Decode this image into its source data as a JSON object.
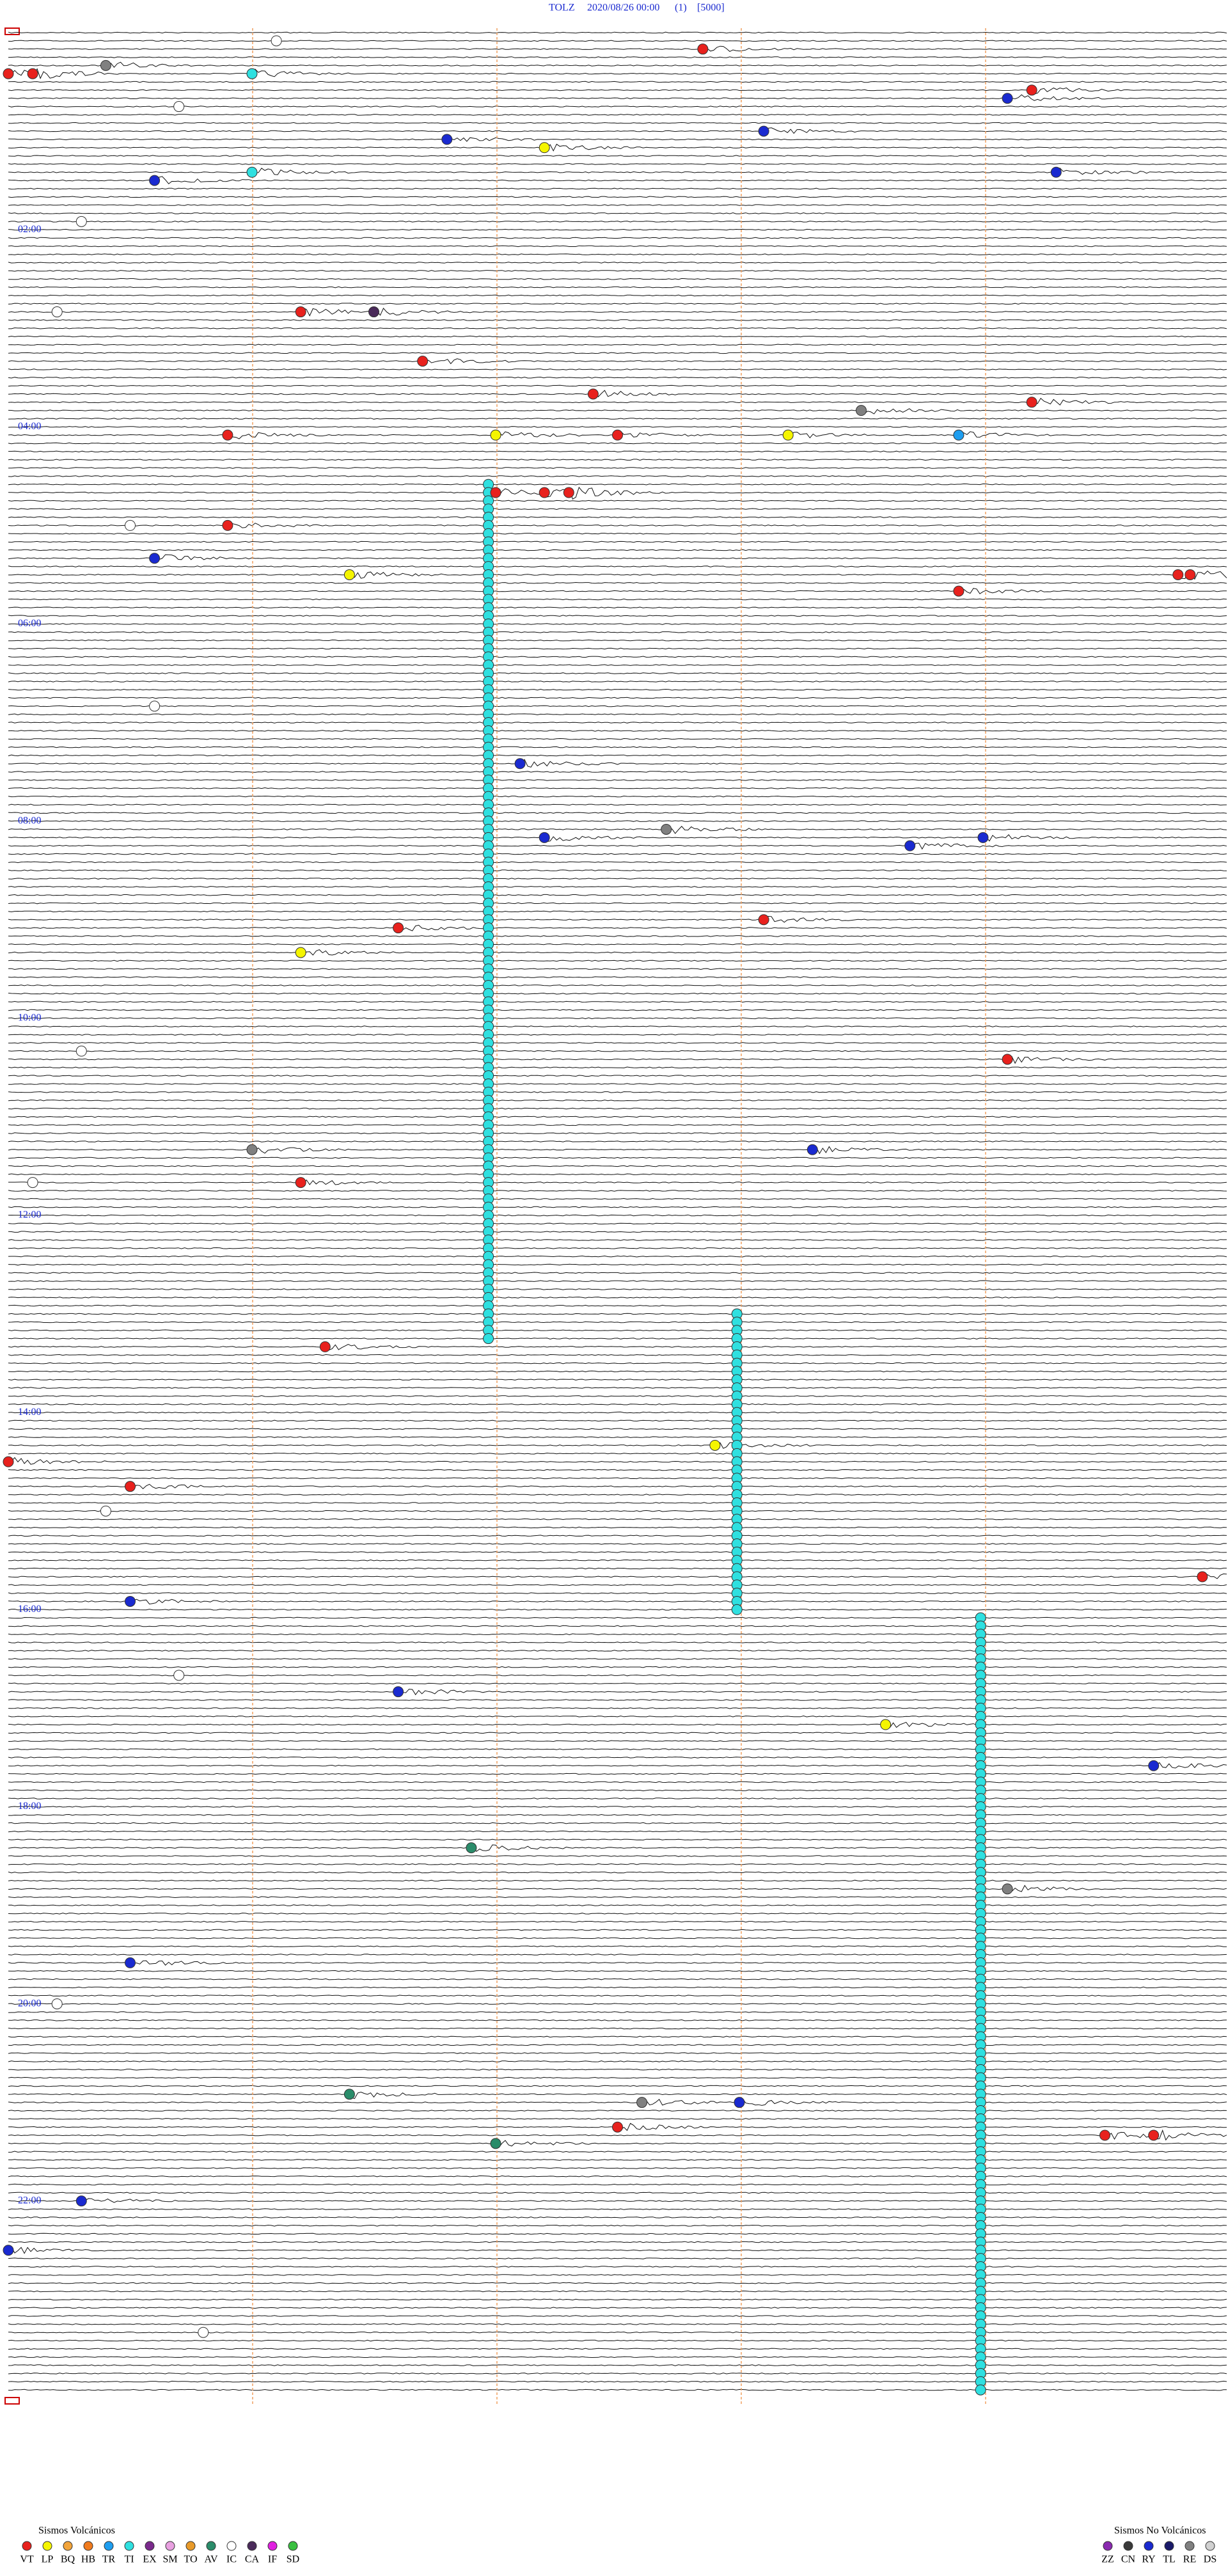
{
  "header": {
    "station": "TOLZ",
    "datetime": "2020/08/26 00:00",
    "channel": "(1)",
    "scale": "[5000]"
  },
  "hour_labels": [
    "02:00",
    "04:00",
    "06:00",
    "08:00",
    "10:00",
    "12:00",
    "14:00",
    "16:00",
    "18:00",
    "20:00",
    "22:00"
  ],
  "legend_volcanic": {
    "title": "Sismos Volcánicos",
    "items": [
      {
        "code": "VT",
        "color": "#e8211d"
      },
      {
        "code": "LP",
        "color": "#f5f500"
      },
      {
        "code": "BQ",
        "color": "#f2a43a"
      },
      {
        "code": "HB",
        "color": "#f07b1e"
      },
      {
        "code": "TR",
        "color": "#1e9ef0"
      },
      {
        "code": "TI",
        "color": "#2fe0e0"
      },
      {
        "code": "EX",
        "color": "#7a2a8c"
      },
      {
        "code": "SM",
        "color": "#e8a0e0"
      },
      {
        "code": "TO",
        "color": "#e89a2a"
      },
      {
        "code": "AV",
        "color": "#2a8c6a"
      },
      {
        "code": "IC",
        "color": "#ffffff"
      },
      {
        "code": "CA",
        "color": "#4a2a5a"
      },
      {
        "code": "IF",
        "color": "#e020e0"
      },
      {
        "code": "SD",
        "color": "#3ac040"
      }
    ]
  },
  "legend_nonvolcanic": {
    "title": "Sismos No Volcánicos",
    "items": [
      {
        "code": "ZZ",
        "color": "#8a2ab0"
      },
      {
        "code": "CN",
        "color": "#3a3a3a"
      },
      {
        "code": "RY",
        "color": "#1a2ad0"
      },
      {
        "code": "TL",
        "color": "#1a1a6a"
      },
      {
        "code": "RE",
        "color": "#808080"
      },
      {
        "code": "DS",
        "color": "#d0d0d0"
      }
    ]
  },
  "events": [
    {
      "type": "VT",
      "minute": 12.85
    },
    {
      "type": "VT",
      "minute": 25.0
    },
    {
      "type": "VT",
      "minute": 25.1
    },
    {
      "type": "TI",
      "minute": 26.0
    },
    {
      "type": "VT",
      "minute": 39.2
    },
    {
      "type": "RY",
      "minute": 44.1
    },
    {
      "type": "RY",
      "minute": 63.1
    },
    {
      "type": "RY",
      "minute": 66.8
    },
    {
      "type": "LP",
      "minute": 72.2
    },
    {
      "type": "RY",
      "minute": 90.6
    },
    {
      "type": "RY",
      "minute": 89.3
    },
    {
      "type": "TI",
      "minute": 86.0
    },
    {
      "type": "VT",
      "minute": 171.2
    },
    {
      "type": "CA",
      "minute": 171.5
    },
    {
      "type": "VT",
      "minute": 201.7
    },
    {
      "type": "VT",
      "minute": 222.4
    },
    {
      "type": "VT",
      "minute": 229.2
    },
    {
      "type": "VT",
      "minute": 245.9
    },
    {
      "type": "LP",
      "minute": 247.0
    },
    {
      "type": "VT",
      "minute": 247.5
    },
    {
      "type": "LP",
      "minute": 248.2
    },
    {
      "type": "TR",
      "minute": 248.9
    },
    {
      "type": "VT",
      "minute": 282.2
    },
    {
      "type": "VT",
      "minute": 282.3
    },
    {
      "type": "VT",
      "minute": 282.0
    },
    {
      "type": "VT",
      "minute": 300.9
    },
    {
      "type": "RY",
      "minute": 320.6
    },
    {
      "type": "LP",
      "minute": 331.4
    },
    {
      "type": "VT",
      "minute": 334.8
    },
    {
      "type": "VT",
      "minute": 334.85
    },
    {
      "type": "VT",
      "minute": 343.9
    },
    {
      "type": "RY",
      "minute": 447.1
    },
    {
      "type": "RY",
      "minute": 492.2
    },
    {
      "type": "RY",
      "minute": 498.7
    },
    {
      "type": "RY",
      "minute": 494.0
    },
    {
      "type": "VT",
      "minute": 546.6
    },
    {
      "type": "VT",
      "minute": 543.1
    },
    {
      "type": "LP",
      "minute": 561.2
    },
    {
      "type": "VT",
      "minute": 629.1
    },
    {
      "type": "RY",
      "minute": 683.3
    },
    {
      "type": "VT",
      "minute": 701.2
    },
    {
      "type": "VT",
      "minute": 801.3
    },
    {
      "type": "LP",
      "minute": 862.9
    },
    {
      "type": "VT",
      "minute": 870.0
    },
    {
      "type": "VT",
      "minute": 885.5
    },
    {
      "type": "VT",
      "minute": 944.9
    },
    {
      "type": "RY",
      "minute": 955.5
    },
    {
      "type": "RY",
      "minute": 1011.6
    },
    {
      "type": "LP",
      "minute": 1033.6
    },
    {
      "type": "RY",
      "minute": 1059.7
    },
    {
      "type": "AV",
      "minute": 1106.9
    },
    {
      "type": "RY",
      "minute": 1175.5
    },
    {
      "type": "AV",
      "minute": 1256.4
    },
    {
      "type": "RY",
      "minute": 1263.0
    },
    {
      "type": "VT",
      "minute": 1277.5
    },
    {
      "type": "AV",
      "minute": 1287.0
    },
    {
      "type": "VT",
      "minute": 1284.5
    },
    {
      "type": "VT",
      "minute": 1284.7
    },
    {
      "type": "RY",
      "minute": 1320.3
    },
    {
      "type": "RY",
      "minute": 1350.0
    },
    {
      "type": "IC",
      "minute": 6.1
    },
    {
      "type": "IC",
      "minute": 45.7
    },
    {
      "type": "IC",
      "minute": 115.3
    },
    {
      "type": "IC",
      "minute": 170.2
    },
    {
      "type": "IC",
      "minute": 300.5
    },
    {
      "type": "IC",
      "minute": 410.6
    },
    {
      "type": "IC",
      "minute": 620.3
    },
    {
      "type": "IC",
      "minute": 700.1
    },
    {
      "type": "IC",
      "minute": 900.4
    },
    {
      "type": "IC",
      "minute": 1000.7
    },
    {
      "type": "IC",
      "minute": 1200.2
    },
    {
      "type": "IC",
      "minute": 1400.8
    },
    {
      "type": "RE",
      "minute": 20.4
    },
    {
      "type": "RE",
      "minute": 233.5
    },
    {
      "type": "RE",
      "minute": 487.7
    },
    {
      "type": "RE",
      "minute": 681.0
    },
    {
      "type": "RE",
      "minute": 1134.1
    },
    {
      "type": "RE",
      "minute": 1262.6
    }
  ],
  "tremors": [
    {
      "type": "TI",
      "start": 276.97,
      "end": 796.97
    },
    {
      "type": "TI",
      "start": 782.99,
      "end": 962.99
    },
    {
      "type": "TI",
      "start": 968.99,
      "end": 1438.99
    }
  ]
}
